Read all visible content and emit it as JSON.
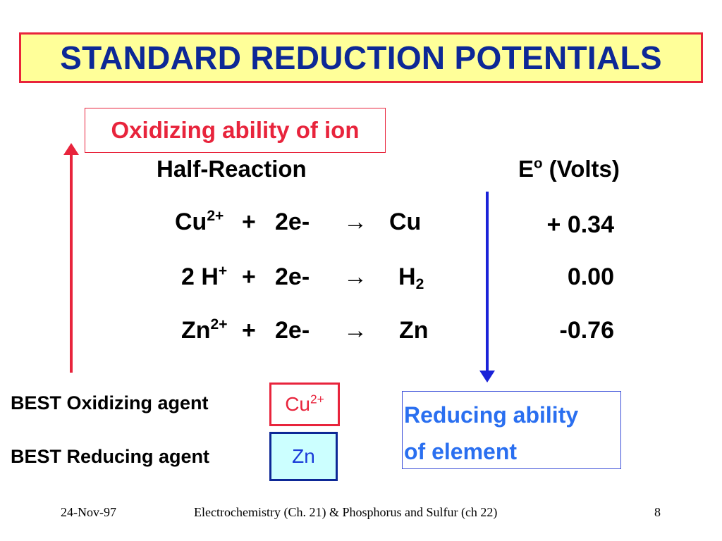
{
  "title": "STANDARD REDUCTION POTENTIALS",
  "oxidizing_label": "Oxidizing ability of ion",
  "headers": {
    "half_reaction": "Half-Reaction",
    "potential_base": "E",
    "potential_sup": "o",
    "potential_unit": "(Volts)"
  },
  "reactions": [
    {
      "species": "Cu",
      "charge": "2+",
      "plus": "+",
      "electrons": "2e-",
      "arrow": "→",
      "product": "Cu",
      "product_sub": "",
      "potential": "+ 0.34"
    },
    {
      "species": "2 H",
      "charge": "+",
      "plus": "+",
      "electrons": "2e-",
      "arrow": "→",
      "product": "H",
      "product_sub": "2",
      "potential": "0.00"
    },
    {
      "species": "Zn",
      "charge": "2+",
      "plus": "+",
      "electrons": "2e-",
      "arrow": "→",
      "product": "Zn",
      "product_sub": "",
      "potential": "-0.76"
    }
  ],
  "best_oxidizing": {
    "label": "BEST Oxidizing agent",
    "value": "Cu",
    "value_sup": "2+"
  },
  "best_reducing": {
    "label": "BEST Reducing agent",
    "value": "Zn"
  },
  "reducing_label": {
    "line1": "Reducing ability",
    "line2": "of element"
  },
  "footer": {
    "date": "24-Nov-97",
    "course": "Electrochemistry (Ch. 21) & Phosphorus and Sulfur (ch 22)",
    "page": "8"
  },
  "colors": {
    "red": "#e8243c",
    "navy": "#0d2896",
    "blue_arrow": "#1a22d8",
    "title_bg": "#ffff99",
    "zn_bg": "#ccffff",
    "reducing_text": "#2a6ff0"
  },
  "icons": {
    "up_arrow": "red-up-arrow-icon",
    "down_arrow": "blue-down-arrow-icon"
  }
}
